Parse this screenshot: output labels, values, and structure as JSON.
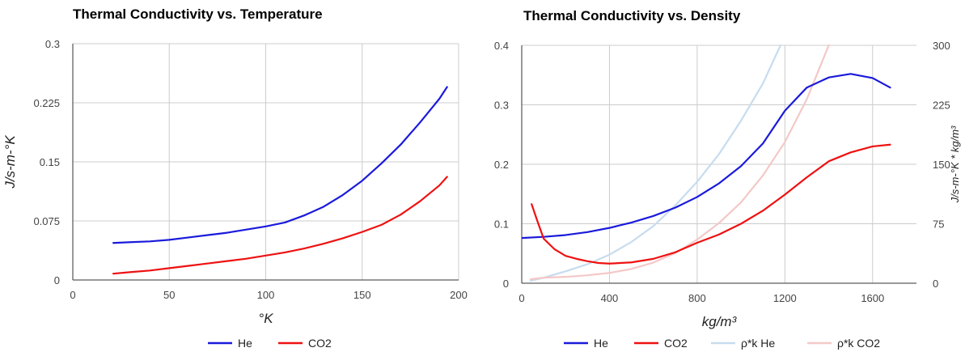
{
  "colors": {
    "he": "#1a1adc",
    "co2": "#ee1111",
    "rho_he": "#c7dcee",
    "rho_co2": "#f4c8c8",
    "grid": "#cccccc",
    "axis": "#333333"
  },
  "chart_data": [
    {
      "type": "line",
      "title": "Thermal Conductivity vs. Temperature",
      "xlabel": "°K",
      "ylabel": "J/s-m-°K",
      "xlim": [
        0,
        200
      ],
      "ylim": [
        0,
        0.3
      ],
      "x_ticks": [
        0,
        50,
        100,
        150,
        200
      ],
      "x_tick_labels": [
        "0",
        "50",
        "100",
        "150",
        "200"
      ],
      "y_ticks": [
        0,
        0.075,
        0.15,
        0.225,
        0.3
      ],
      "y_tick_labels": [
        "0",
        "0.075",
        "0.15",
        "0.225",
        "0.3"
      ],
      "grid": true,
      "legend": "bottom",
      "series": [
        {
          "name": "He",
          "color": "#1a1adc",
          "points": [
            [
              21,
              0.047
            ],
            [
              30,
              0.048
            ],
            [
              40,
              0.049
            ],
            [
              50,
              0.051
            ],
            [
              60,
              0.054
            ],
            [
              70,
              0.057
            ],
            [
              80,
              0.06
            ],
            [
              90,
              0.064
            ],
            [
              100,
              0.068
            ],
            [
              110,
              0.073
            ],
            [
              120,
              0.082
            ],
            [
              130,
              0.093
            ],
            [
              140,
              0.108
            ],
            [
              150,
              0.126
            ],
            [
              160,
              0.148
            ],
            [
              170,
              0.172
            ],
            [
              180,
              0.2
            ],
            [
              190,
              0.23
            ],
            [
              194,
              0.245
            ]
          ]
        },
        {
          "name": "CO2",
          "color": "#ee1111",
          "points": [
            [
              21,
              0.008
            ],
            [
              30,
              0.01
            ],
            [
              40,
              0.012
            ],
            [
              50,
              0.015
            ],
            [
              60,
              0.018
            ],
            [
              70,
              0.021
            ],
            [
              80,
              0.024
            ],
            [
              90,
              0.027
            ],
            [
              100,
              0.031
            ],
            [
              110,
              0.035
            ],
            [
              120,
              0.04
            ],
            [
              130,
              0.046
            ],
            [
              140,
              0.053
            ],
            [
              150,
              0.061
            ],
            [
              160,
              0.07
            ],
            [
              170,
              0.083
            ],
            [
              180,
              0.1
            ],
            [
              190,
              0.12
            ],
            [
              194,
              0.131
            ]
          ]
        }
      ]
    },
    {
      "type": "line",
      "title": "Thermal Conductivity vs. Density",
      "xlabel": "kg/m³",
      "ylabel": "J/s-m-°K",
      "y2label": "J/s-m-°K * kg/m³",
      "xlim": [
        0,
        1800
      ],
      "ylim": [
        0,
        0.4
      ],
      "y2lim": [
        0,
        300
      ],
      "x_ticks": [
        0,
        400,
        800,
        1200,
        1600
      ],
      "x_tick_labels": [
        "0",
        "400",
        "800",
        "1200",
        "1600"
      ],
      "y_ticks": [
        0,
        0.1,
        0.2,
        0.3,
        0.4
      ],
      "y_tick_labels": [
        "0",
        "0.1",
        "0.2",
        "0.3",
        "0.4"
      ],
      "y2_ticks": [
        0,
        75,
        150,
        225,
        300
      ],
      "y2_tick_labels": [
        "0",
        "75",
        "150",
        "225",
        "300"
      ],
      "grid": true,
      "legend": "bottom",
      "series": [
        {
          "name": "He",
          "color": "#1a1adc",
          "axis": "left",
          "points": [
            [
              0,
              0.076
            ],
            [
              100,
              0.078
            ],
            [
              200,
              0.081
            ],
            [
              300,
              0.086
            ],
            [
              400,
              0.093
            ],
            [
              500,
              0.102
            ],
            [
              600,
              0.113
            ],
            [
              700,
              0.127
            ],
            [
              800,
              0.145
            ],
            [
              900,
              0.168
            ],
            [
              1000,
              0.197
            ],
            [
              1100,
              0.235
            ],
            [
              1200,
              0.29
            ],
            [
              1300,
              0.329
            ],
            [
              1400,
              0.346
            ],
            [
              1500,
              0.352
            ],
            [
              1600,
              0.345
            ],
            [
              1680,
              0.329
            ]
          ]
        },
        {
          "name": "CO2",
          "color": "#ee1111",
          "axis": "left",
          "points": [
            [
              45,
              0.133
            ],
            [
              70,
              0.106
            ],
            [
              100,
              0.075
            ],
            [
              150,
              0.057
            ],
            [
              200,
              0.046
            ],
            [
              250,
              0.041
            ],
            [
              300,
              0.037
            ],
            [
              350,
              0.034
            ],
            [
              400,
              0.033
            ],
            [
              500,
              0.035
            ],
            [
              600,
              0.041
            ],
            [
              700,
              0.052
            ],
            [
              800,
              0.068
            ],
            [
              900,
              0.082
            ],
            [
              1000,
              0.1
            ],
            [
              1100,
              0.122
            ],
            [
              1200,
              0.149
            ],
            [
              1300,
              0.178
            ],
            [
              1400,
              0.205
            ],
            [
              1500,
              0.22
            ],
            [
              1600,
              0.23
            ],
            [
              1680,
              0.233
            ]
          ]
        },
        {
          "name": "ρ*k He",
          "color": "#c7dcee",
          "axis": "right",
          "points": [
            [
              40,
              3
            ],
            [
              100,
              7
            ],
            [
              200,
              15
            ],
            [
              300,
              24
            ],
            [
              400,
              36
            ],
            [
              500,
              52
            ],
            [
              600,
              72
            ],
            [
              700,
              98
            ],
            [
              800,
              128
            ],
            [
              900,
              163
            ],
            [
              1000,
              205
            ],
            [
              1100,
              252
            ],
            [
              1180,
              300
            ]
          ]
        },
        {
          "name": "ρ*k CO2",
          "color": "#f4c8c8",
          "axis": "right",
          "points": [
            [
              40,
              5
            ],
            [
              100,
              7
            ],
            [
              200,
              8
            ],
            [
              300,
              10
            ],
            [
              400,
              13
            ],
            [
              500,
              18
            ],
            [
              600,
              26
            ],
            [
              700,
              38
            ],
            [
              800,
              55
            ],
            [
              900,
              76
            ],
            [
              1000,
              102
            ],
            [
              1100,
              136
            ],
            [
              1200,
              178
            ],
            [
              1300,
              232
            ],
            [
              1400,
              300
            ]
          ]
        }
      ]
    }
  ]
}
